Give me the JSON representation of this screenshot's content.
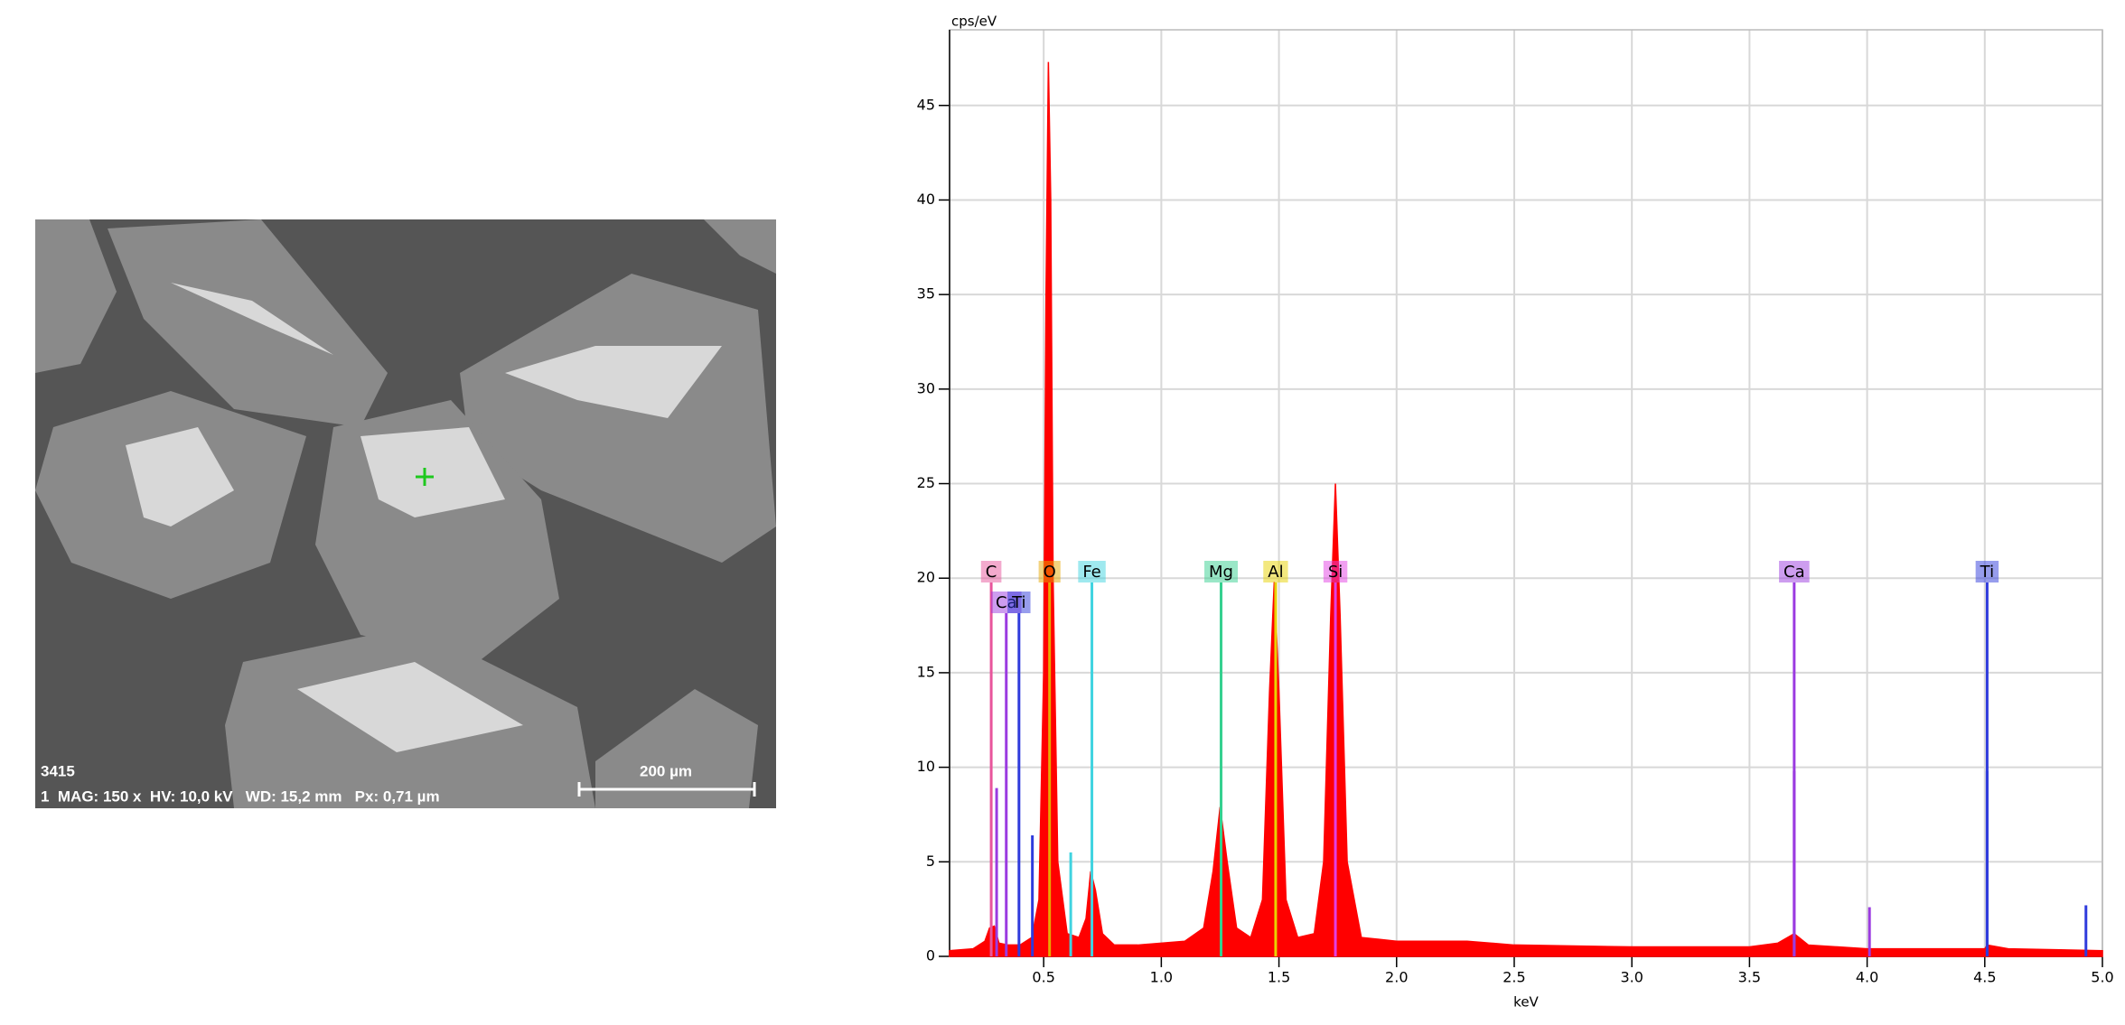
{
  "sem_image": {
    "sample_id": "3415",
    "info": "1  MAG: 150 x  HV: 10,0 kV   WD: 15,2 mm   Px: 0,71 µm",
    "scale_bar": "200 µm"
  },
  "chart_data": {
    "type": "area",
    "ylabel": "cps/eV",
    "xlabel": "keV",
    "xlim": [
      0.1,
      5.0
    ],
    "ylim": [
      0,
      49
    ],
    "xticks": [
      {
        "value": 0.5,
        "label": "0.5"
      },
      {
        "value": 1,
        "label": "1.0"
      },
      {
        "value": 1.5,
        "label": "1.5"
      },
      {
        "value": 2,
        "label": "2.0"
      },
      {
        "value": 2.5,
        "label": "2.5"
      },
      {
        "value": 3,
        "label": "3.0"
      },
      {
        "value": 3.5,
        "label": "3.5"
      },
      {
        "value": 4,
        "label": "4.0"
      },
      {
        "value": 4.5,
        "label": "4.5"
      },
      {
        "value": 5,
        "label": "5.0"
      }
    ],
    "yticks": [
      0,
      5,
      10,
      15,
      20,
      25,
      30,
      35,
      40,
      45
    ],
    "grid": true,
    "color": "#ff0000",
    "x": [
      0.1,
      0.2,
      0.25,
      0.27,
      0.29,
      0.31,
      0.35,
      0.4,
      0.45,
      0.48,
      0.5,
      0.51,
      0.52,
      0.53,
      0.54,
      0.56,
      0.6,
      0.65,
      0.68,
      0.7,
      0.72,
      0.75,
      0.8,
      0.9,
      1.0,
      1.1,
      1.18,
      1.22,
      1.25,
      1.28,
      1.32,
      1.38,
      1.43,
      1.46,
      1.48,
      1.5,
      1.53,
      1.58,
      1.65,
      1.69,
      1.72,
      1.74,
      1.76,
      1.79,
      1.85,
      2.0,
      2.3,
      2.5,
      3.0,
      3.5,
      3.62,
      3.69,
      3.75,
      4.0,
      4.5,
      4.51,
      4.6,
      5.0
    ],
    "values": [
      0.3,
      0.4,
      0.8,
      1.5,
      1.6,
      0.7,
      0.6,
      0.6,
      1.0,
      3,
      15,
      35,
      47.3,
      40,
      20,
      5,
      1.2,
      1.0,
      2,
      4.5,
      3.5,
      1.2,
      0.6,
      0.6,
      0.7,
      0.8,
      1.5,
      4.5,
      7.9,
      5,
      1.5,
      1.0,
      3,
      14,
      19.8,
      14,
      3,
      1.0,
      1.2,
      5,
      18,
      25,
      18,
      5,
      1.0,
      0.8,
      0.8,
      0.6,
      0.5,
      0.5,
      0.7,
      1.2,
      0.6,
      0.4,
      0.4,
      0.6,
      0.4,
      0.3
    ],
    "element_markers": [
      {
        "label": "C",
        "color": "#e8559c",
        "x": 0.277
      },
      {
        "label": "Ca",
        "color": "#9b3be0",
        "x": 0.341
      },
      {
        "label": "Ti",
        "color": "#2f3bdc",
        "x": 0.395
      },
      {
        "label": "O",
        "color": "#e8a800",
        "x": 0.525
      },
      {
        "label": "Fe",
        "color": "#3fd3e0",
        "x": 0.705
      },
      {
        "label": "Mg",
        "color": "#35d08f",
        "x": 1.254
      },
      {
        "label": "Al",
        "color": "#e8d200",
        "x": 1.486
      },
      {
        "label": "Si",
        "color": "#e33fe3",
        "x": 1.74
      },
      {
        "label": "Ca",
        "color": "#9b3be0",
        "x": 3.69
      },
      {
        "label": "Ti",
        "color": "#2f3bdc",
        "x": 4.51
      }
    ],
    "sticks": [
      {
        "color": "#2f3bdc",
        "x": [
          0.452,
          4.93
        ],
        "values": [
          6.4,
          2.7
        ]
      },
      {
        "color": "#3fd3e0",
        "x": [
          0.615
        ],
        "values": [
          5.5
        ]
      },
      {
        "color": "#9b3be0",
        "x": [
          0.3,
          3.69,
          4.01
        ],
        "values": [
          8.9,
          9.8,
          2.6
        ]
      },
      {
        "color": "#2f3bdc",
        "x": [
          4.51
        ],
        "values": [
          9.8
        ]
      }
    ]
  }
}
